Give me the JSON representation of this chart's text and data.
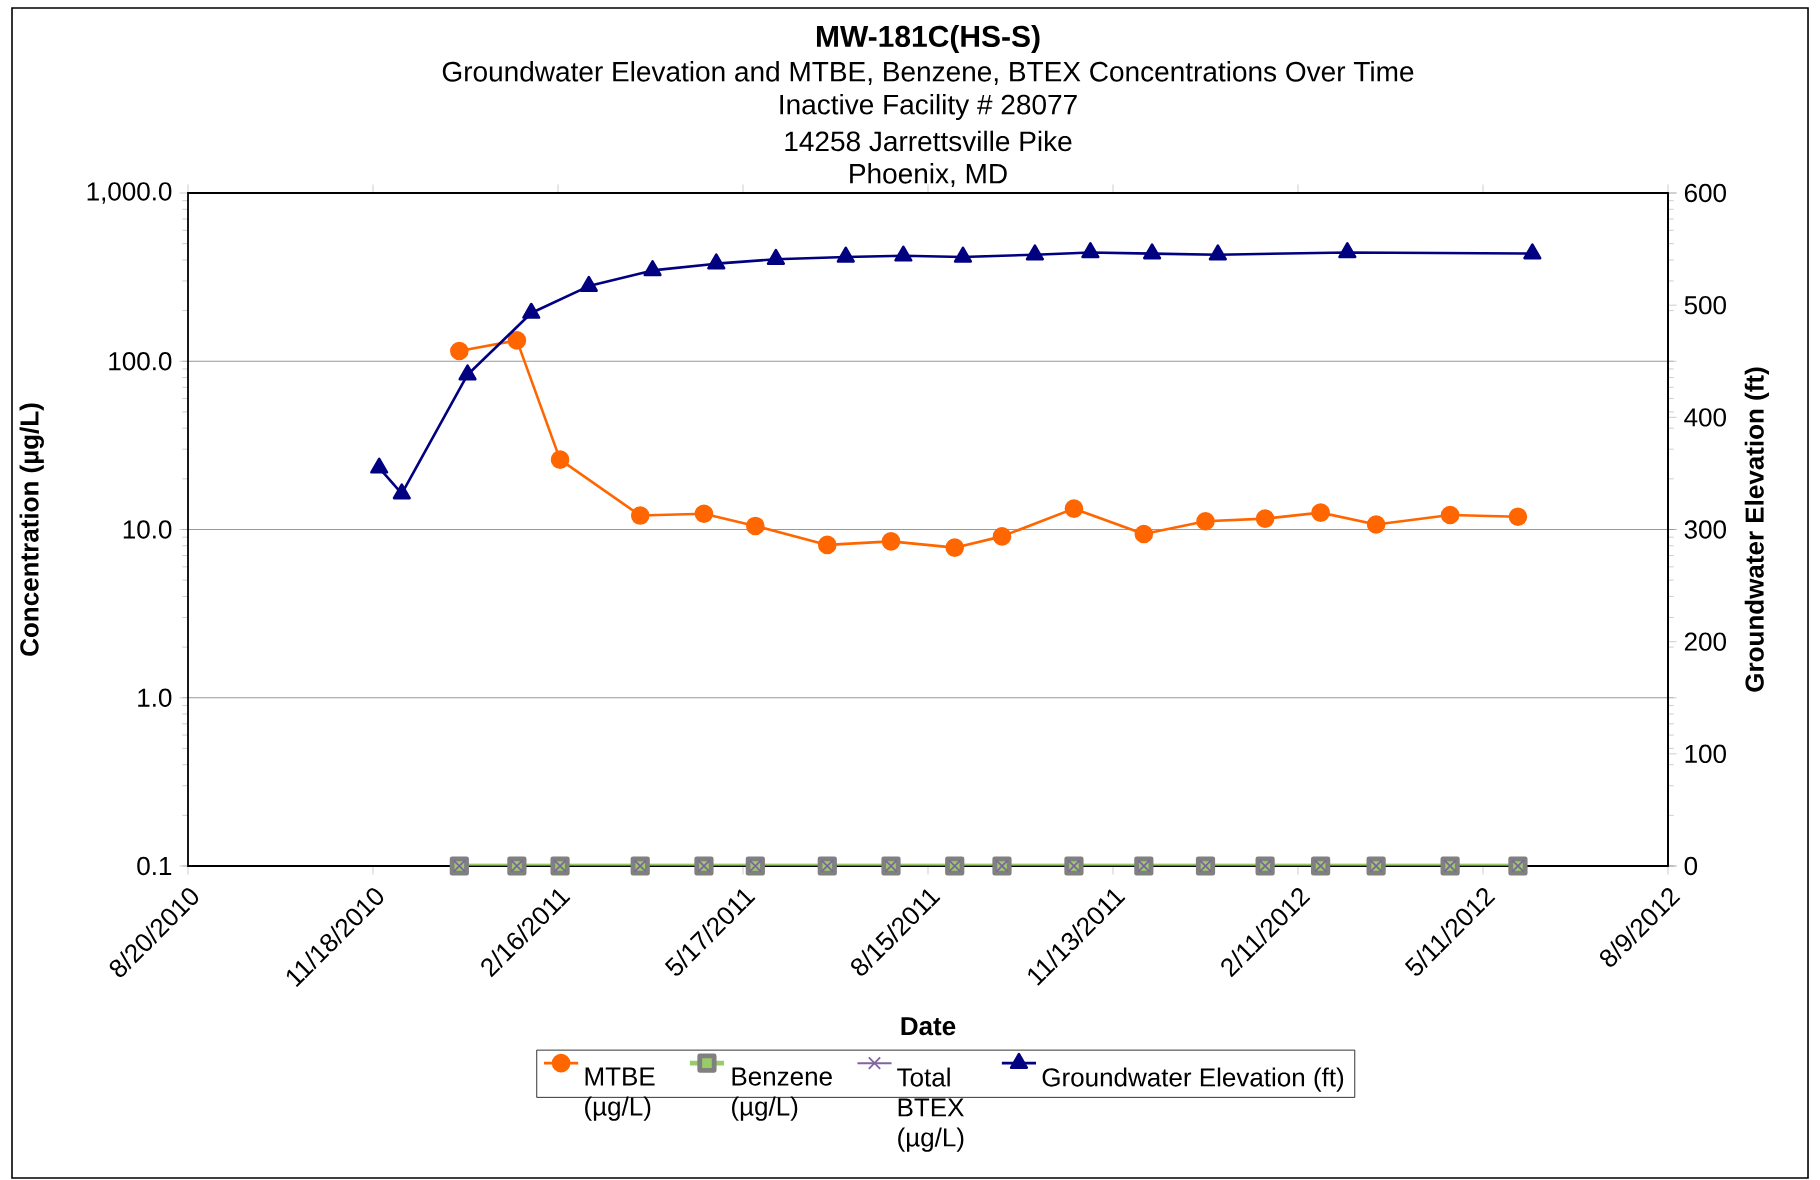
{
  "chart_data": {
    "type": "line",
    "title": "MW-181C(HS-S)",
    "subtitle": "Groundwater Elevation and MTBE, Benzene, BTEX Concentrations Over Time",
    "annotations": [
      "Inactive Facility # 28077",
      "14258 Jarrettsville Pike",
      "Phoenix, MD"
    ],
    "xlabel": "Date",
    "ylabel": "Concentration (µg/L)",
    "y2label": "Groundwater Elevation (ft)",
    "log": "y",
    "grid": "y",
    "legend": "bottom",
    "xlim": [
      "2010-08-20",
      "2012-08-09"
    ],
    "xticks": [
      {
        "value": "2010-08-20",
        "label": "8/20/2010"
      },
      {
        "value": "2010-11-18",
        "label": "11/18/2010"
      },
      {
        "value": "2011-02-16",
        "label": "2/16/2011"
      },
      {
        "value": "2011-05-17",
        "label": "5/17/2011"
      },
      {
        "value": "2011-08-15",
        "label": "8/15/2011"
      },
      {
        "value": "2011-11-13",
        "label": "11/13/2011"
      },
      {
        "value": "2012-02-11",
        "label": "2/11/2012"
      },
      {
        "value": "2012-05-11",
        "label": "5/11/2012"
      },
      {
        "value": "2012-08-09",
        "label": "8/9/2012"
      }
    ],
    "ylim": [
      0.1,
      1000
    ],
    "yticks": [
      {
        "value": 0.1,
        "label": "0.1"
      },
      {
        "value": 1,
        "label": "1.0"
      },
      {
        "value": 10,
        "label": "10.0"
      },
      {
        "value": 100,
        "label": "100.0"
      },
      {
        "value": 1000,
        "label": "1,000.0"
      }
    ],
    "y2lim": [
      0,
      600
    ],
    "y2ticks": [
      0,
      100,
      200,
      300,
      400,
      500,
      600
    ],
    "series": [
      {
        "name": "MTBE (µg/L)",
        "color": "#ff6600",
        "marker": "circle",
        "x": [
          "2010-12-30",
          "2011-01-27",
          "2011-02-17",
          "2011-03-28",
          "2011-04-28",
          "2011-05-23",
          "2011-06-27",
          "2011-07-28",
          "2011-08-28",
          "2011-09-20",
          "2011-10-25",
          "2011-11-28",
          "2011-12-28",
          "2012-01-26",
          "2012-02-22",
          "2012-03-20",
          "2012-04-25",
          "2012-05-28"
        ],
        "values": [
          115,
          133,
          26,
          12.1,
          12.4,
          10.5,
          8.1,
          8.5,
          7.8,
          9.1,
          13.3,
          9.4,
          11.2,
          11.6,
          12.6,
          10.7,
          12.2,
          11.9
        ]
      },
      {
        "name": "Benzene (µg/L)",
        "color": "#99cc66",
        "marker": "square",
        "x": [
          "2010-12-30",
          "2011-01-27",
          "2011-02-17",
          "2011-03-28",
          "2011-04-28",
          "2011-05-23",
          "2011-06-27",
          "2011-07-28",
          "2011-08-28",
          "2011-09-20",
          "2011-10-25",
          "2011-11-28",
          "2011-12-28",
          "2012-01-26",
          "2012-02-22",
          "2012-03-20",
          "2012-04-25",
          "2012-05-28"
        ],
        "values": [
          0.1,
          0.1,
          0.1,
          0.1,
          0.1,
          0.1,
          0.1,
          0.1,
          0.1,
          0.1,
          0.1,
          0.1,
          0.1,
          0.1,
          0.1,
          0.1,
          0.1,
          0.1
        ]
      },
      {
        "name": "Total BTEX (µg/L)",
        "color": "#8064a2",
        "marker": "cross",
        "x": [
          "2010-12-30",
          "2011-01-27",
          "2011-02-17",
          "2011-03-28",
          "2011-04-28",
          "2011-05-23",
          "2011-06-27",
          "2011-07-28",
          "2011-08-28",
          "2011-09-20",
          "2011-10-25",
          "2011-11-28",
          "2011-12-28",
          "2012-01-26",
          "2012-02-22",
          "2012-03-20",
          "2012-04-25",
          "2012-05-28"
        ],
        "values": [
          0.1,
          0.1,
          0.1,
          0.1,
          0.1,
          0.1,
          0.1,
          0.1,
          0.1,
          0.1,
          0.1,
          0.1,
          0.1,
          0.1,
          0.1,
          0.1,
          0.1,
          0.1
        ]
      },
      {
        "name": "Groundwater Elevation (ft)",
        "color": "#000080",
        "marker": "triangle",
        "axis": "y2",
        "x": [
          "2010-11-21",
          "2010-12-02",
          "2011-01-03",
          "2011-02-03",
          "2011-03-03",
          "2011-04-03",
          "2011-05-04",
          "2011-06-02",
          "2011-07-06",
          "2011-08-03",
          "2011-09-01",
          "2011-10-06",
          "2011-11-02",
          "2011-12-02",
          "2012-01-03",
          "2012-03-06",
          "2012-06-04"
        ],
        "values": [
          355,
          332,
          438,
          493,
          517,
          531,
          537,
          541,
          543,
          544,
          543,
          545,
          547,
          546,
          545,
          547,
          546
        ]
      }
    ]
  }
}
